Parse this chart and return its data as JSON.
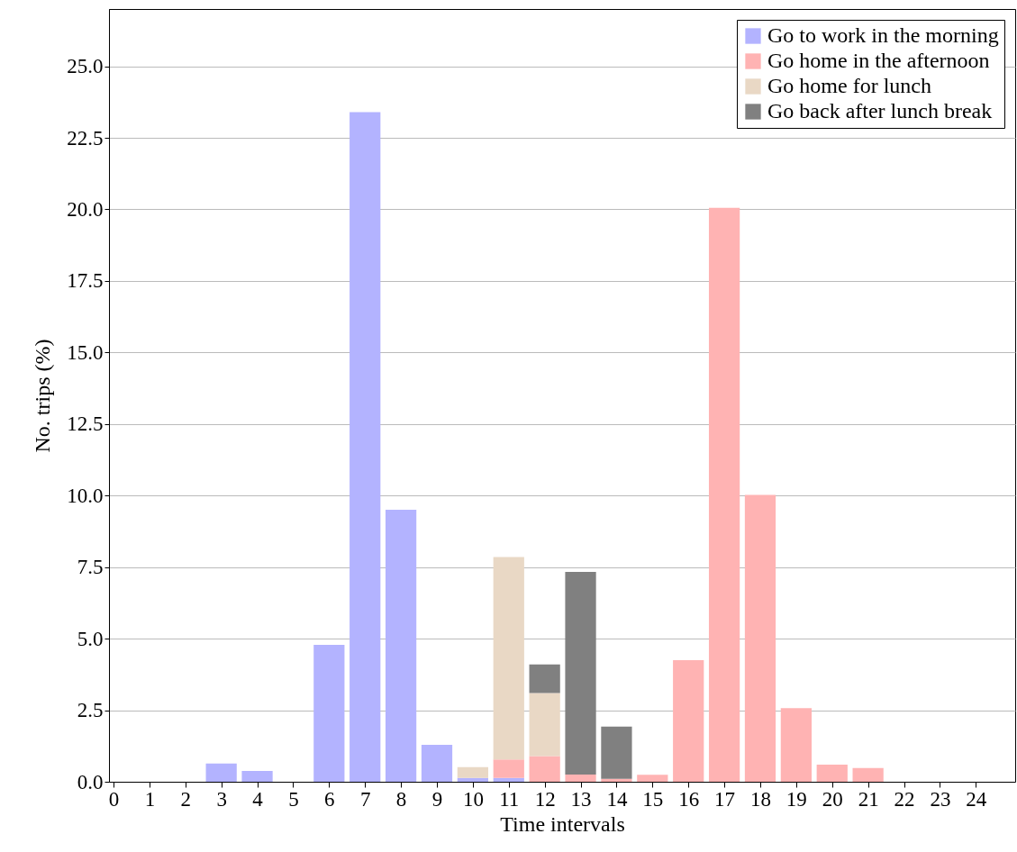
{
  "chart_data": {
    "type": "bar",
    "stacked": true,
    "xlabel": "Time intervals",
    "ylabel": "No. trips (%)",
    "x": [
      0,
      1,
      2,
      3,
      4,
      5,
      6,
      7,
      8,
      9,
      10,
      11,
      12,
      13,
      14,
      15,
      16,
      17,
      18,
      19,
      20,
      21,
      22,
      23,
      24
    ],
    "xlim": [
      0,
      24.97
    ],
    "xticks": [
      0,
      1,
      2,
      3,
      4,
      5,
      6,
      7,
      8,
      9,
      10,
      11,
      12,
      13,
      14,
      15,
      16,
      17,
      18,
      19,
      20,
      21,
      22,
      23,
      24
    ],
    "series": [
      {
        "name": "Go to work in the morning",
        "color": "#b3b3ff",
        "values": [
          0,
          0,
          0,
          0.64,
          0.38,
          0,
          4.78,
          23.4,
          9.5,
          1.29,
          0.13,
          0.13,
          0,
          0,
          0,
          0,
          0,
          0,
          0,
          0,
          0,
          0,
          0,
          0,
          0
        ]
      },
      {
        "name": "Go home in the afternoon",
        "color": "#ffb3b3",
        "values": [
          0,
          0,
          0,
          0,
          0,
          0,
          0,
          0,
          0,
          0,
          0,
          0.65,
          0.9,
          0.25,
          0.1,
          0.24,
          4.25,
          20.05,
          10.02,
          2.57,
          0.6,
          0.48,
          0,
          0,
          0
        ]
      },
      {
        "name": "Go home for lunch",
        "color": "#e9d8c5",
        "values": [
          0,
          0,
          0,
          0,
          0,
          0,
          0,
          0,
          0,
          0,
          0.38,
          7.07,
          2.2,
          0,
          0,
          0,
          0,
          0,
          0,
          0,
          0,
          0,
          0,
          0,
          0
        ]
      },
      {
        "name": "Go back after lunch break",
        "color": "#808080",
        "values": [
          0,
          0,
          0,
          0,
          0,
          0,
          0,
          0,
          0,
          0,
          0,
          0,
          1.0,
          7.08,
          1.83,
          0,
          0,
          0,
          0,
          0,
          0,
          0,
          0,
          0,
          0
        ]
      }
    ],
    "ylim": [
      0,
      27
    ],
    "yticks": [
      {
        "value": 0,
        "label": "0.0"
      },
      {
        "value": 2.5,
        "label": "2.5"
      },
      {
        "value": 5,
        "label": "5.0"
      },
      {
        "value": 7.5,
        "label": "7.5"
      },
      {
        "value": 10,
        "label": "10.0"
      },
      {
        "value": 12.5,
        "label": "12.5"
      },
      {
        "value": 15,
        "label": "15.0"
      },
      {
        "value": 17.5,
        "label": "17.5"
      },
      {
        "value": 20,
        "label": "20.0"
      },
      {
        "value": 22.5,
        "label": "22.5"
      },
      {
        "value": 25,
        "label": "25.0"
      }
    ],
    "grid": "y",
    "legend": "top right"
  }
}
